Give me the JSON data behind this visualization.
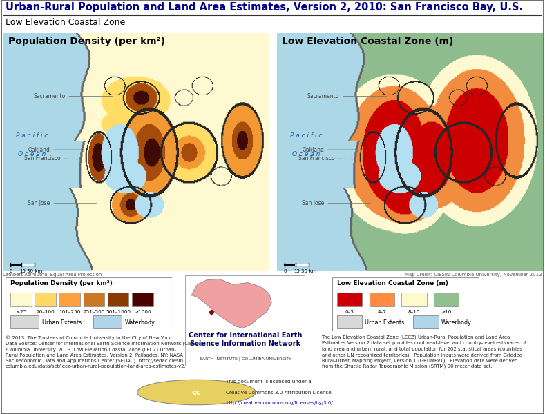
{
  "title": "Urban-Rural Population and Land Area Estimates, Version 2, 2010: San Francisco Bay, U.S.",
  "subtitle": "Low Elevation Coastal Zone",
  "map1_title": "Population Density (per km²)",
  "map2_title": "Low Elevation Coastal Zone (m)",
  "background_color": "#ffffff",
  "title_color": "#00008B",
  "title_fontsize": 10.5,
  "subtitle_fontsize": 9,
  "map_title_fontsize": 10,
  "ocean_color": "#ADD8E6",
  "land_color_left": "#FFFACD",
  "land_color_right": "#8FBC8F",
  "pop_density_colors": [
    "#FFFACD",
    "#FFD966",
    "#FFA040",
    "#CC7722",
    "#8B3A00",
    "#4B0000"
  ],
  "pop_density_labels": [
    "<25",
    "26–100",
    "101–250",
    "251–500",
    "501–1000",
    ">1000"
  ],
  "lecz_colors": [
    "#CC0000",
    "#FF8C40",
    "#FFFACD",
    "#90C090"
  ],
  "lecz_labels": [
    "0–3",
    "4–7",
    "8–10",
    ">10"
  ],
  "urban_extents_color": "#D8D8D8",
  "waterbody_color": "#B0D4E8",
  "legend_bg": "#EBEBEB",
  "pacific_ocean_color": "#ADD8E6",
  "footer_text_left": "© 2013. The Trustees of Columbia University in the City of New York.\nData Source: Center for International Earth Science Information Network (CIESIN)\n/Columbia University. 2013. Low Elevation Coastal Zone (LECZ) Urban-\nRural Population and Land Area Estimates, Version 2. Palisades, NY: NASA\nSocioeconomic Data and Applications Center (SEDAC). http://sedac.ciesin.\ncolumbia.edu/data/set/lecz-urban-rural-population-land-area-estimates-v2.",
  "footer_text_right": "The Low Elevation Coastal Zone (LECZ) Urban-Rural Population and Land Area\nEstimates Version 2 data set provides continent-level and country-level estimates of\nland area and urban, rural, and total population for 202 statistical areas (countries\nand other UN recognized territories).  Population inputs were derived from Gridded\nRural-Urban Mapping Project, version 1 (GRUMPv1).  Elevation data were derived\nfrom the Shuttle Radar Topographic Mission (SRTM) 90 meter data set.",
  "cc_text": "This document is licensed under a\nCreative Commons 3.0 Attribution License\nhttp://creativecommons.org/licenses/by/3.0/",
  "ciesin_text": "Center for International Earth\nScience Information Network",
  "ciesin_sub": "EARTH INSTITUTE | COLUMBIA UNIVERSITY",
  "proj_text": "Lambert Azimuthal Equal Area Projection",
  "credit_text": "Map Credit: CIESIN Columbia University, November 2013",
  "cities": [
    "Sacramento",
    "Oakland",
    "San Francisco",
    "San Jose"
  ],
  "border_color": "#555555"
}
